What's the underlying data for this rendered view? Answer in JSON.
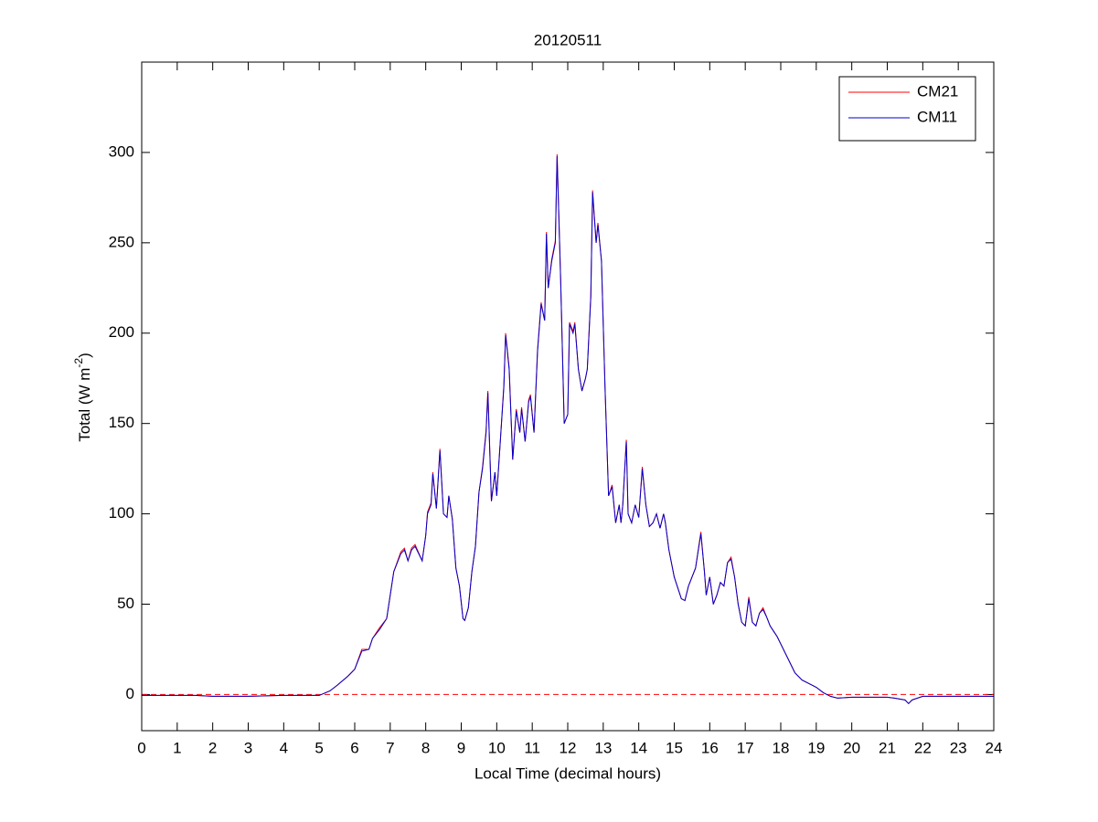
{
  "chart_data": {
    "type": "line",
    "title": "20120511",
    "xlabel": "Local Time (decimal hours)",
    "ylabel": {
      "text": "Total (W m",
      "superscript": "-2",
      "suffix": ")"
    },
    "x": [
      0,
      1,
      1.5,
      2,
      3,
      4,
      4.5,
      5,
      5.3,
      5.5,
      5.8,
      6.0,
      6.2,
      6.4,
      6.5,
      6.7,
      6.9,
      7.0,
      7.1,
      7.3,
      7.4,
      7.5,
      7.6,
      7.7,
      7.9,
      8.0,
      8.05,
      8.15,
      8.2,
      8.3,
      8.4,
      8.5,
      8.6,
      8.65,
      8.75,
      8.85,
      8.95,
      9.05,
      9.1,
      9.2,
      9.3,
      9.4,
      9.5,
      9.6,
      9.7,
      9.75,
      9.85,
      9.95,
      10.0,
      10.1,
      10.2,
      10.25,
      10.35,
      10.45,
      10.55,
      10.65,
      10.7,
      10.8,
      10.9,
      10.95,
      11.05,
      11.15,
      11.25,
      11.35,
      11.4,
      11.45,
      11.55,
      11.65,
      11.7,
      11.8,
      11.9,
      12.0,
      12.05,
      12.15,
      12.2,
      12.3,
      12.4,
      12.5,
      12.55,
      12.65,
      12.7,
      12.8,
      12.85,
      12.95,
      13.05,
      13.15,
      13.25,
      13.35,
      13.45,
      13.5,
      13.55,
      13.65,
      13.7,
      13.8,
      13.9,
      14.0,
      14.1,
      14.2,
      14.3,
      14.4,
      14.5,
      14.6,
      14.7,
      14.75,
      14.85,
      15.0,
      15.2,
      15.3,
      15.4,
      15.5,
      15.6,
      15.75,
      15.85,
      15.9,
      16.0,
      16.1,
      16.2,
      16.3,
      16.4,
      16.5,
      16.6,
      16.7,
      16.8,
      16.9,
      17.0,
      17.1,
      17.2,
      17.3,
      17.4,
      17.5,
      17.6,
      17.7,
      17.8,
      17.9,
      18.0,
      18.2,
      18.4,
      18.6,
      18.8,
      19.0,
      19.2,
      19.4,
      19.6,
      20,
      21,
      21.2,
      21.5,
      21.6,
      21.7,
      22,
      23,
      24
    ],
    "series": [
      {
        "name": "CM21",
        "color": "#ff0000",
        "values": [
          -0.5,
          -0.5,
          -0.5,
          -1,
          -1,
          -0.5,
          -0.5,
          -0.5,
          2,
          5,
          10,
          14,
          25,
          25,
          31,
          37,
          42,
          55,
          68,
          79,
          81,
          74,
          81,
          83,
          74,
          88,
          101,
          106,
          123,
          103,
          136,
          100,
          98,
          110,
          97,
          70,
          60,
          42,
          41,
          48,
          68,
          82,
          112,
          126,
          146,
          168,
          107,
          123,
          110,
          140,
          171,
          200,
          181,
          130,
          158,
          145,
          159,
          140,
          163,
          166,
          145,
          191,
          217,
          207,
          256,
          225,
          241,
          251,
          299,
          230,
          150,
          155,
          206,
          201,
          206,
          180,
          168,
          175,
          180,
          221,
          279,
          250,
          261,
          240,
          170,
          110,
          116,
          95,
          105,
          95,
          105,
          141,
          100,
          95,
          105,
          98,
          126,
          105,
          93,
          95,
          100,
          92,
          100,
          95,
          80,
          65,
          53,
          52,
          60,
          65,
          70,
          90,
          68,
          55,
          65,
          50,
          55,
          62,
          60,
          73,
          76,
          65,
          50,
          40,
          38,
          54,
          40,
          38,
          45,
          48,
          43,
          38,
          35,
          32,
          28,
          20,
          12,
          8,
          6,
          4,
          1,
          -1,
          -2,
          -1.5,
          -1.5,
          -2,
          -3,
          -5,
          -3,
          -1,
          -1,
          -1
        ]
      },
      {
        "name": "CM11",
        "color": "#0000cc",
        "values": [
          -0.5,
          -0.5,
          -0.5,
          -1,
          -1,
          -0.5,
          -0.5,
          -0.5,
          2,
          5,
          10,
          14,
          24,
          25,
          31,
          36,
          42,
          55,
          68,
          78,
          80,
          74,
          80,
          82,
          74,
          88,
          100,
          105,
          122,
          103,
          135,
          100,
          98,
          110,
          97,
          70,
          60,
          42,
          41,
          48,
          68,
          82,
          112,
          125,
          145,
          167,
          107,
          123,
          110,
          140,
          170,
          199,
          180,
          130,
          157,
          145,
          158,
          140,
          162,
          165,
          145,
          190,
          216,
          207,
          255,
          225,
          240,
          250,
          298,
          230,
          150,
          155,
          205,
          200,
          205,
          180,
          168,
          175,
          180,
          220,
          278,
          250,
          260,
          240,
          170,
          110,
          115,
          95,
          105,
          95,
          105,
          140,
          100,
          95,
          105,
          98,
          125,
          105,
          93,
          95,
          100,
          92,
          100,
          95,
          80,
          65,
          53,
          52,
          60,
          65,
          70,
          89,
          68,
          55,
          65,
          50,
          55,
          62,
          60,
          73,
          75,
          65,
          50,
          40,
          38,
          53,
          40,
          38,
          45,
          47,
          43,
          38,
          35,
          32,
          28,
          20,
          12,
          8,
          6,
          4,
          1,
          -1,
          -2,
          -1.5,
          -1.5,
          -2,
          -3,
          -5,
          -3,
          -1,
          -1,
          -1
        ]
      }
    ],
    "reference_line": {
      "value": 0,
      "color": "#ff0000",
      "style": "dashed"
    },
    "xlim": [
      0,
      24
    ],
    "xticks": [
      0,
      1,
      2,
      3,
      4,
      5,
      6,
      7,
      8,
      9,
      10,
      11,
      12,
      13,
      14,
      15,
      16,
      17,
      18,
      19,
      20,
      21,
      22,
      23,
      24
    ],
    "ylim": [
      -20,
      350
    ],
    "yticks": [
      0,
      50,
      100,
      150,
      200,
      250,
      300
    ],
    "grid": false,
    "legend": "northeast"
  }
}
